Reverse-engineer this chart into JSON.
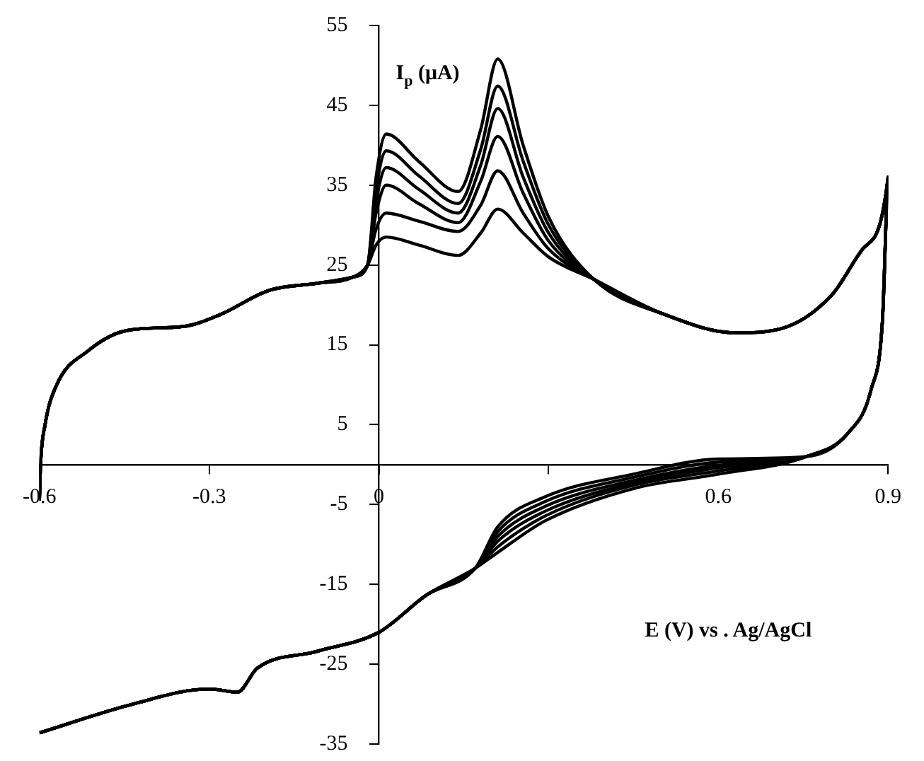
{
  "chart_data": {
    "type": "line",
    "xlabel": "E (V) vs . Ag/AgCl",
    "ylabel": "I$_{p}$ (μA)",
    "xlim": [
      -0.6,
      0.9
    ],
    "xticks": [
      -0.6,
      -0.3,
      0,
      {
        "value": 0.3,
        "label": null
      },
      0.6,
      0.9
    ],
    "ylim": [
      -35,
      55
    ],
    "yticks": [
      -35,
      -25,
      -15,
      -5,
      5,
      15,
      25,
      35,
      45,
      55
    ],
    "grid": false,
    "legend": false,
    "marker": "none",
    "line_style": "solid",
    "series": [
      {
        "color": "#000000",
        "x": [
          -0.6,
          -0.598,
          -0.59,
          -0.57,
          -0.515,
          -0.445,
          -0.345,
          -0.28,
          -0.195,
          -0.11,
          -0.045,
          -0.02,
          -0.005,
          0.013,
          0.07,
          0.14,
          0.18,
          0.21,
          0.255,
          0.3,
          0.38,
          0.505,
          0.63,
          0.71,
          0.8,
          0.855,
          0.9,
          0.89,
          0.87,
          0.83,
          0.755,
          0.6,
          0.45,
          0.295,
          0.21,
          0.17,
          0.085,
          0,
          -0.11,
          -0.215,
          -0.25,
          -0.3,
          -0.435,
          -0.6
        ],
        "values": [
          -4.5,
          0,
          5,
          9.9,
          14.2,
          16.8,
          17.3,
          18.8,
          21.8,
          22.7,
          23.5,
          25,
          36,
          41.4,
          38,
          34.2,
          42,
          50.8,
          40,
          31,
          23.2,
          18.8,
          16.5,
          17,
          21.2,
          27,
          36,
          18,
          9.4,
          4,
          1,
          0.7,
          -1.2,
          -4,
          -7.8,
          -13,
          -16.3,
          -21,
          -23.4,
          -25.5,
          -28.5,
          -28.1,
          -30,
          -33.6
        ]
      },
      {
        "color": "#000000",
        "x": [
          -0.6,
          -0.598,
          -0.59,
          -0.57,
          -0.515,
          -0.445,
          -0.345,
          -0.28,
          -0.195,
          -0.11,
          -0.045,
          -0.02,
          -0.005,
          0.013,
          0.07,
          0.14,
          0.18,
          0.21,
          0.255,
          0.3,
          0.38,
          0.505,
          0.63,
          0.71,
          0.8,
          0.855,
          0.9,
          0.89,
          0.87,
          0.83,
          0.755,
          0.6,
          0.45,
          0.295,
          0.21,
          0.17,
          0.085,
          0,
          -0.11,
          -0.215,
          -0.25,
          -0.3,
          -0.435,
          -0.6
        ],
        "values": [
          -4.5,
          0,
          5,
          9.9,
          14.2,
          16.8,
          17.3,
          18.8,
          21.8,
          22.7,
          23.5,
          25,
          34.5,
          39.3,
          36.2,
          32.7,
          39.5,
          47.4,
          38,
          30,
          23.2,
          18.8,
          16.5,
          17,
          21.2,
          27,
          36,
          18,
          9.4,
          4,
          1,
          0.3,
          -1.6,
          -4.6,
          -8.4,
          -13,
          -16.3,
          -21,
          -23.4,
          -25.5,
          -28.5,
          -28.1,
          -30,
          -33.6
        ]
      },
      {
        "color": "#000000",
        "x": [
          -0.6,
          -0.598,
          -0.59,
          -0.57,
          -0.515,
          -0.445,
          -0.345,
          -0.28,
          -0.195,
          -0.11,
          -0.045,
          -0.02,
          -0.005,
          0.013,
          0.07,
          0.14,
          0.18,
          0.21,
          0.255,
          0.3,
          0.38,
          0.505,
          0.63,
          0.71,
          0.8,
          0.855,
          0.9,
          0.89,
          0.87,
          0.83,
          0.755,
          0.6,
          0.45,
          0.295,
          0.21,
          0.17,
          0.085,
          0,
          -0.11,
          -0.215,
          -0.25,
          -0.3,
          -0.435,
          -0.6
        ],
        "values": [
          -4.5,
          0,
          5,
          9.9,
          14.2,
          16.8,
          17.3,
          18.8,
          21.8,
          22.7,
          23.5,
          25,
          33,
          37.2,
          34.5,
          31.5,
          37.5,
          44.6,
          36,
          29,
          23.2,
          18.8,
          16.5,
          17,
          21.2,
          27,
          36,
          18,
          9.4,
          4,
          1,
          -0.1,
          -2,
          -5.2,
          -9,
          -13,
          -16.3,
          -21,
          -23.4,
          -25.5,
          -28.5,
          -28.1,
          -30,
          -33.6
        ]
      },
      {
        "color": "#000000",
        "x": [
          -0.6,
          -0.598,
          -0.59,
          -0.57,
          -0.515,
          -0.445,
          -0.345,
          -0.28,
          -0.195,
          -0.11,
          -0.045,
          -0.02,
          -0.005,
          0.013,
          0.07,
          0.14,
          0.18,
          0.21,
          0.255,
          0.3,
          0.38,
          0.505,
          0.63,
          0.71,
          0.8,
          0.855,
          0.9,
          0.89,
          0.87,
          0.83,
          0.755,
          0.6,
          0.45,
          0.295,
          0.21,
          0.17,
          0.085,
          0,
          -0.11,
          -0.215,
          -0.25,
          -0.3,
          -0.435,
          -0.6
        ],
        "values": [
          -4.5,
          0,
          5,
          9.9,
          14.2,
          16.8,
          17.3,
          18.8,
          21.8,
          22.7,
          23.5,
          25,
          31.5,
          35,
          32.7,
          30.3,
          35.5,
          41.1,
          34,
          28,
          23.2,
          18.8,
          16.5,
          17,
          21.2,
          27,
          36,
          18,
          9.4,
          4,
          1,
          -0.4,
          -2.3,
          -5.8,
          -9.6,
          -13,
          -16.3,
          -21,
          -23.4,
          -25.5,
          -28.5,
          -28.1,
          -30,
          -33.6
        ]
      },
      {
        "color": "#000000",
        "x": [
          -0.6,
          -0.598,
          -0.59,
          -0.57,
          -0.515,
          -0.445,
          -0.345,
          -0.28,
          -0.195,
          -0.11,
          -0.045,
          -0.02,
          -0.005,
          0.013,
          0.07,
          0.14,
          0.18,
          0.21,
          0.255,
          0.3,
          0.38,
          0.505,
          0.63,
          0.71,
          0.8,
          0.855,
          0.9,
          0.89,
          0.87,
          0.83,
          0.755,
          0.6,
          0.45,
          0.295,
          0.21,
          0.17,
          0.085,
          0,
          -0.11,
          -0.215,
          -0.25,
          -0.3,
          -0.435,
          -0.6
        ],
        "values": [
          -4.5,
          0,
          5,
          9.9,
          14.2,
          16.8,
          17.3,
          18.8,
          21.8,
          22.7,
          23.5,
          25,
          29.5,
          31.5,
          30.5,
          29.2,
          32.5,
          36.8,
          31.5,
          27,
          23.2,
          18.8,
          16.5,
          17,
          21.2,
          27,
          36,
          18,
          9.4,
          4,
          1,
          -0.8,
          -2.6,
          -6.4,
          -10.3,
          -13,
          -16.3,
          -21,
          -23.4,
          -25.5,
          -28.5,
          -28.1,
          -30,
          -33.6
        ]
      },
      {
        "color": "#000000",
        "x": [
          -0.6,
          -0.598,
          -0.59,
          -0.57,
          -0.515,
          -0.445,
          -0.345,
          -0.28,
          -0.195,
          -0.11,
          -0.045,
          -0.02,
          -0.005,
          0.013,
          0.07,
          0.14,
          0.18,
          0.21,
          0.255,
          0.3,
          0.38,
          0.505,
          0.63,
          0.71,
          0.8,
          0.855,
          0.9,
          0.89,
          0.87,
          0.83,
          0.755,
          0.6,
          0.45,
          0.295,
          0.21,
          0.17,
          0.085,
          0,
          -0.11,
          -0.215,
          -0.25,
          -0.3,
          -0.435,
          -0.6
        ],
        "values": [
          -4.5,
          0,
          5,
          9.9,
          14.2,
          16.8,
          17.3,
          18.8,
          21.8,
          22.7,
          23.5,
          25,
          27.5,
          28.5,
          27.5,
          26.2,
          29,
          32,
          29,
          26,
          23.2,
          18.8,
          16.5,
          17,
          21.2,
          27,
          36,
          18,
          9.4,
          4,
          1,
          -1.2,
          -3,
          -7,
          -11,
          -13,
          -16.3,
          -21,
          -23.4,
          -25.5,
          -28.5,
          -28.1,
          -30,
          -33.6
        ]
      }
    ]
  }
}
